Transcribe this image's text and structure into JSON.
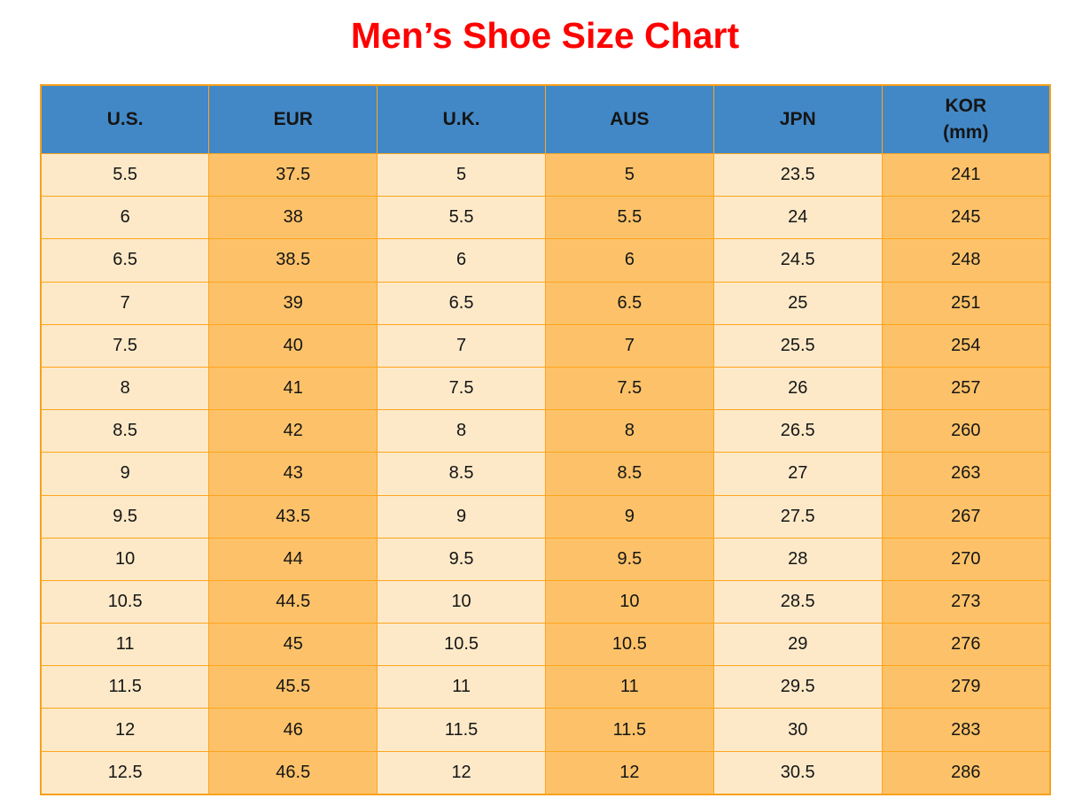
{
  "title": "Men’s Shoe Size Chart",
  "chart_data": {
    "type": "table",
    "title": "Men’s Shoe Size Chart",
    "columns": [
      "U.S.",
      "EUR",
      "U.K.",
      "AUS",
      "JPN",
      "KOR\n(mm)"
    ],
    "rows": [
      [
        "5.5",
        "37.5",
        "5",
        "5",
        "23.5",
        "241"
      ],
      [
        "6",
        "38",
        "5.5",
        "5.5",
        "24",
        "245"
      ],
      [
        "6.5",
        "38.5",
        "6",
        "6",
        "24.5",
        "248"
      ],
      [
        "7",
        "39",
        "6.5",
        "6.5",
        "25",
        "251"
      ],
      [
        "7.5",
        "40",
        "7",
        "7",
        "25.5",
        "254"
      ],
      [
        "8",
        "41",
        "7.5",
        "7.5",
        "26",
        "257"
      ],
      [
        "8.5",
        "42",
        "8",
        "8",
        "26.5",
        "260"
      ],
      [
        "9",
        "43",
        "8.5",
        "8.5",
        "27",
        "263"
      ],
      [
        "9.5",
        "43.5",
        "9",
        "9",
        "27.5",
        "267"
      ],
      [
        "10",
        "44",
        "9.5",
        "9.5",
        "28",
        "270"
      ],
      [
        "10.5",
        "44.5",
        "10",
        "10",
        "28.5",
        "273"
      ],
      [
        "11",
        "45",
        "10.5",
        "10.5",
        "29",
        "276"
      ],
      [
        "11.5",
        "45.5",
        "11",
        "11",
        "29.5",
        "279"
      ],
      [
        "12",
        "46",
        "11.5",
        "11.5",
        "30",
        "283"
      ],
      [
        "12.5",
        "46.5",
        "12",
        "12",
        "30.5",
        "286"
      ]
    ],
    "layout": {
      "legend": "none",
      "grid": "on",
      "column_fill_pattern": [
        "cream",
        "orange",
        "cream",
        "orange",
        "cream",
        "orange"
      ]
    }
  },
  "colors": {
    "title_red": "#FF0000",
    "header_blue": "#4288C6",
    "cell_cream": "#FDE9C8",
    "cell_orange": "#FDC269",
    "grid_orange": "#FFA41C",
    "outer_border": "#F9A11B",
    "text": "#151515",
    "background": "#FFFFFF"
  }
}
